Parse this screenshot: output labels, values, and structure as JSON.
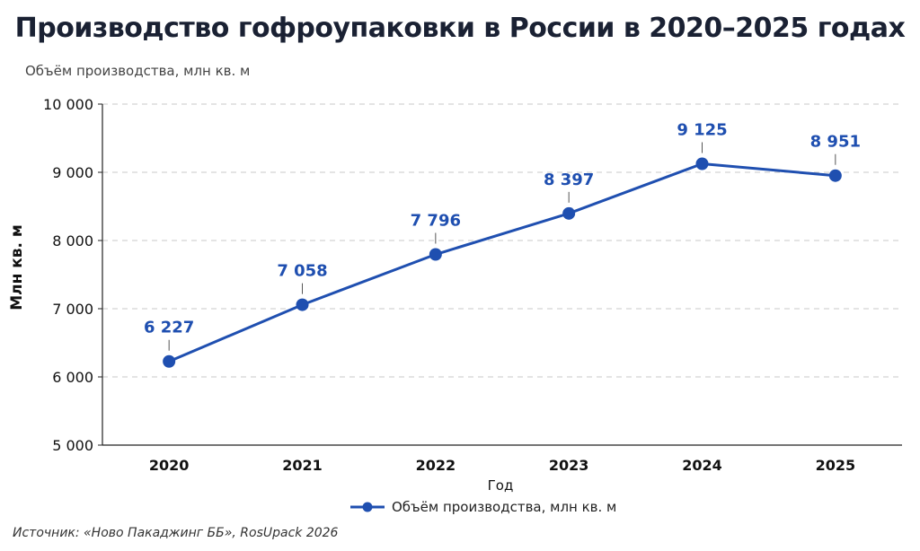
{
  "chart_data": {
    "type": "line",
    "title": "Производство гофроупаковки в России в 2020–2025 годах",
    "subtitle": "Объём производства, млн кв. м",
    "xlabel": "Год",
    "ylabel": "Млн кв. м",
    "categories": [
      "2020",
      "2021",
      "2022",
      "2023",
      "2024",
      "2025"
    ],
    "series": [
      {
        "name": "Объём производства, млн кв. м",
        "values": [
          6227,
          7058,
          7796,
          8397,
          9125,
          8951
        ],
        "labels": [
          "6 227",
          "7 058",
          "7 796",
          "8 397",
          "9 125",
          "8 951"
        ]
      }
    ],
    "ylim": [
      5000,
      10000
    ],
    "yticks": [
      5000,
      6000,
      7000,
      8000,
      9000,
      10000
    ],
    "ytick_labels": [
      "5 000",
      "6 000",
      "7 000",
      "8 000",
      "9 000",
      "10 000"
    ],
    "grid": true,
    "legend_position": "bottom-center",
    "line_color": "#1f4fb0",
    "label_color": "#1f4fb0"
  },
  "source": "Источник: «Ново Пакаджинг ББ», RosUpack 2026"
}
